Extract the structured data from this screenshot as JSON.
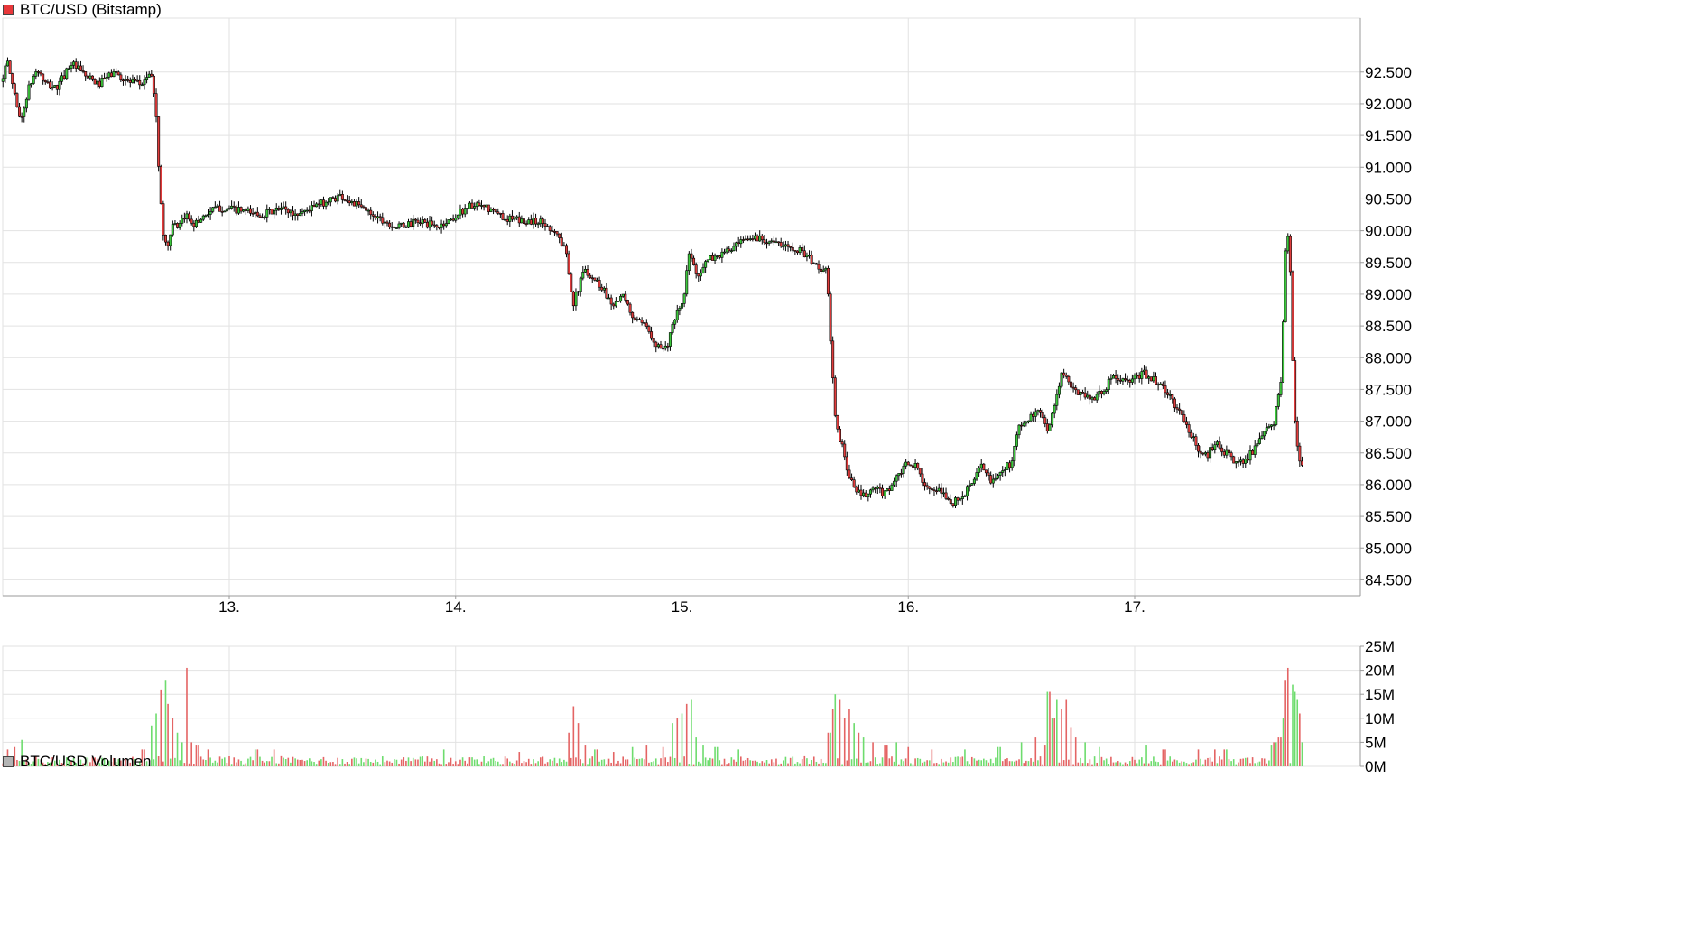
{
  "price_panel": {
    "title": "BTC/USD (Bitstamp)",
    "legend_color": "#e8373a"
  },
  "volume_panel": {
    "title": "BTC/USD Volumen",
    "legend_color": "#b4b4b4"
  },
  "colors": {
    "up": "#3cc83c",
    "down": "#e03c3c",
    "wick": "#000000",
    "grid": "#e2e2e2",
    "axis": "#9a9a9a",
    "volume_up": "#6edc6e",
    "volume_down": "#e46464"
  },
  "chart_data": [
    {
      "type": "candlestick",
      "title": "BTC/USD (Bitstamp)",
      "x_domain": [
        12.0,
        18.0
      ],
      "x_ticks": [
        {
          "value": 13,
          "label": "13."
        },
        {
          "value": 14,
          "label": "14."
        },
        {
          "value": 15,
          "label": "15."
        },
        {
          "value": 16,
          "label": "16."
        },
        {
          "value": 17,
          "label": "17."
        }
      ],
      "ylim": [
        84250,
        93350
      ],
      "y_ticks": [
        {
          "value": 84500,
          "label": "84.500"
        },
        {
          "value": 85000,
          "label": "85.000"
        },
        {
          "value": 85500,
          "label": "85.500"
        },
        {
          "value": 86000,
          "label": "86.000"
        },
        {
          "value": 86500,
          "label": "86.500"
        },
        {
          "value": 87000,
          "label": "87.000"
        },
        {
          "value": 87500,
          "label": "87.500"
        },
        {
          "value": 88000,
          "label": "88.000"
        },
        {
          "value": 88500,
          "label": "88.500"
        },
        {
          "value": 89000,
          "label": "89.000"
        },
        {
          "value": 89500,
          "label": "89.500"
        },
        {
          "value": 90000,
          "label": "90.000"
        },
        {
          "value": 90500,
          "label": "90.500"
        },
        {
          "value": 91000,
          "label": "91.000"
        },
        {
          "value": 91500,
          "label": "91.500"
        },
        {
          "value": 92000,
          "label": "92.000"
        },
        {
          "value": 92500,
          "label": "92.500"
        }
      ],
      "grid": true,
      "price_path": [
        [
          12.0,
          92350
        ],
        [
          12.03,
          92650
        ],
        [
          12.06,
          92200
        ],
        [
          12.09,
          91700
        ],
        [
          12.12,
          92200
        ],
        [
          12.16,
          92550
        ],
        [
          12.2,
          92300
        ],
        [
          12.25,
          92250
        ],
        [
          12.31,
          92650
        ],
        [
          12.37,
          92450
        ],
        [
          12.43,
          92300
        ],
        [
          12.5,
          92500
        ],
        [
          12.56,
          92350
        ],
        [
          12.62,
          92300
        ],
        [
          12.66,
          92500
        ],
        [
          12.685,
          92050
        ],
        [
          12.7,
          90800
        ],
        [
          12.72,
          89900
        ],
        [
          12.74,
          89750
        ],
        [
          12.76,
          90150
        ],
        [
          12.78,
          90000
        ],
        [
          12.82,
          90250
        ],
        [
          12.86,
          90100
        ],
        [
          12.9,
          90250
        ],
        [
          12.95,
          90350
        ],
        [
          13.0,
          90350
        ],
        [
          13.08,
          90300
        ],
        [
          13.15,
          90250
        ],
        [
          13.25,
          90350
        ],
        [
          13.3,
          90250
        ],
        [
          13.4,
          90400
        ],
        [
          13.5,
          90550
        ],
        [
          13.6,
          90350
        ],
        [
          13.65,
          90250
        ],
        [
          13.7,
          90150
        ],
        [
          13.75,
          90050
        ],
        [
          13.85,
          90150
        ],
        [
          13.93,
          90050
        ],
        [
          14.0,
          90200
        ],
        [
          14.07,
          90400
        ],
        [
          14.15,
          90350
        ],
        [
          14.23,
          90200
        ],
        [
          14.3,
          90150
        ],
        [
          14.38,
          90150
        ],
        [
          14.45,
          90000
        ],
        [
          14.5,
          89650
        ],
        [
          14.53,
          88850
        ],
        [
          14.58,
          89400
        ],
        [
          14.62,
          89250
        ],
        [
          14.66,
          89100
        ],
        [
          14.7,
          88850
        ],
        [
          14.75,
          88950
        ],
        [
          14.8,
          88600
        ],
        [
          14.86,
          88450
        ],
        [
          14.9,
          88200
        ],
        [
          14.94,
          88150
        ],
        [
          14.98,
          88600
        ],
        [
          15.02,
          88950
        ],
        [
          15.04,
          89650
        ],
        [
          15.08,
          89300
        ],
        [
          15.13,
          89550
        ],
        [
          15.2,
          89650
        ],
        [
          15.27,
          89800
        ],
        [
          15.33,
          89900
        ],
        [
          15.4,
          89850
        ],
        [
          15.45,
          89750
        ],
        [
          15.5,
          89750
        ],
        [
          15.55,
          89650
        ],
        [
          15.6,
          89450
        ],
        [
          15.65,
          89350
        ],
        [
          15.67,
          88100
        ],
        [
          15.69,
          86900
        ],
        [
          15.72,
          86600
        ],
        [
          15.75,
          86100
        ],
        [
          15.78,
          85900
        ],
        [
          15.82,
          85800
        ],
        [
          15.86,
          85950
        ],
        [
          15.9,
          85850
        ],
        [
          15.95,
          86050
        ],
        [
          16.0,
          86300
        ],
        [
          16.04,
          86300
        ],
        [
          16.08,
          86050
        ],
        [
          16.12,
          85850
        ],
        [
          16.16,
          85900
        ],
        [
          16.2,
          85700
        ],
        [
          16.25,
          85800
        ],
        [
          16.3,
          86100
        ],
        [
          16.34,
          86300
        ],
        [
          16.38,
          86000
        ],
        [
          16.42,
          86250
        ],
        [
          16.46,
          86300
        ],
        [
          16.5,
          86900
        ],
        [
          16.55,
          87050
        ],
        [
          16.6,
          87150
        ],
        [
          16.63,
          86850
        ],
        [
          16.66,
          87300
        ],
        [
          16.69,
          87800
        ],
        [
          16.73,
          87500
        ],
        [
          16.78,
          87450
        ],
        [
          16.82,
          87350
        ],
        [
          16.86,
          87450
        ],
        [
          16.92,
          87700
        ],
        [
          16.98,
          87600
        ],
        [
          17.05,
          87750
        ],
        [
          17.1,
          87650
        ],
        [
          17.15,
          87450
        ],
        [
          17.2,
          87200
        ],
        [
          17.25,
          86850
        ],
        [
          17.3,
          86500
        ],
        [
          17.33,
          86450
        ],
        [
          17.37,
          86700
        ],
        [
          17.4,
          86550
        ],
        [
          17.45,
          86350
        ],
        [
          17.5,
          86400
        ],
        [
          17.55,
          86600
        ],
        [
          17.6,
          86900
        ],
        [
          17.63,
          87000
        ],
        [
          17.64,
          87350
        ],
        [
          17.66,
          87650
        ],
        [
          17.67,
          89000
        ],
        [
          17.68,
          90000
        ],
        [
          17.695,
          89700
        ],
        [
          17.705,
          88400
        ],
        [
          17.715,
          87150
        ],
        [
          17.725,
          86700
        ],
        [
          17.74,
          86300
        ]
      ]
    },
    {
      "type": "bar",
      "title": "BTC/USD Volumen",
      "x_domain": [
        12.0,
        18.0
      ],
      "ylim": [
        0,
        25000000
      ],
      "y_ticks": [
        {
          "value": 0,
          "label": "0M"
        },
        {
          "value": 5000000,
          "label": "5M"
        },
        {
          "value": 10000000,
          "label": "10M"
        },
        {
          "value": 15000000,
          "label": "15M"
        },
        {
          "value": 20000000,
          "label": "20M"
        },
        {
          "value": 25000000,
          "label": "25M"
        }
      ],
      "baseline": 1400000,
      "spikes": [
        [
          12.02,
          3500000
        ],
        [
          12.05,
          4000000
        ],
        [
          12.08,
          5500000
        ],
        [
          12.62,
          3500000
        ],
        [
          12.66,
          8500000
        ],
        [
          12.68,
          11000000
        ],
        [
          12.7,
          16000000
        ],
        [
          12.715,
          18000000
        ],
        [
          12.73,
          13000000
        ],
        [
          12.75,
          10000000
        ],
        [
          12.77,
          7000000
        ],
        [
          12.79,
          5000000
        ],
        [
          12.81,
          20500000
        ],
        [
          12.83,
          5000000
        ],
        [
          12.86,
          4500000
        ],
        [
          12.91,
          3500000
        ],
        [
          13.12,
          3500000
        ],
        [
          13.2,
          3500000
        ],
        [
          13.95,
          3500000
        ],
        [
          14.28,
          3000000
        ],
        [
          14.5,
          7000000
        ],
        [
          14.52,
          12500000
        ],
        [
          14.54,
          9000000
        ],
        [
          14.57,
          4500000
        ],
        [
          14.62,
          3500000
        ],
        [
          14.7,
          3000000
        ],
        [
          14.78,
          4000000
        ],
        [
          14.84,
          4500000
        ],
        [
          14.92,
          4000000
        ],
        [
          14.96,
          9000000
        ],
        [
          14.98,
          10000000
        ],
        [
          15.0,
          11000000
        ],
        [
          15.02,
          13000000
        ],
        [
          15.04,
          14000000
        ],
        [
          15.06,
          6000000
        ],
        [
          15.09,
          4500000
        ],
        [
          15.15,
          4000000
        ],
        [
          15.25,
          3500000
        ],
        [
          15.65,
          7000000
        ],
        [
          15.67,
          12000000
        ],
        [
          15.68,
          15000000
        ],
        [
          15.7,
          14000000
        ],
        [
          15.72,
          10000000
        ],
        [
          15.74,
          12000000
        ],
        [
          15.76,
          9000000
        ],
        [
          15.78,
          7000000
        ],
        [
          15.8,
          6000000
        ],
        [
          15.84,
          5000000
        ],
        [
          15.9,
          4500000
        ],
        [
          15.95,
          5000000
        ],
        [
          16.0,
          4000000
        ],
        [
          16.1,
          3500000
        ],
        [
          16.25,
          3500000
        ],
        [
          16.4,
          4000000
        ],
        [
          16.5,
          5000000
        ],
        [
          16.56,
          6000000
        ],
        [
          16.6,
          4500000
        ],
        [
          16.62,
          15500000
        ],
        [
          16.64,
          10000000
        ],
        [
          16.66,
          14000000
        ],
        [
          16.68,
          12000000
        ],
        [
          16.7,
          14000000
        ],
        [
          16.72,
          8000000
        ],
        [
          16.74,
          6000000
        ],
        [
          16.78,
          5000000
        ],
        [
          16.84,
          4000000
        ],
        [
          17.05,
          4500000
        ],
        [
          17.13,
          3500000
        ],
        [
          17.28,
          3500000
        ],
        [
          17.35,
          3500000
        ],
        [
          17.4,
          3500000
        ],
        [
          17.6,
          4500000
        ],
        [
          17.62,
          5000000
        ],
        [
          17.64,
          6000000
        ],
        [
          17.66,
          10000000
        ],
        [
          17.67,
          18000000
        ],
        [
          17.68,
          20500000
        ],
        [
          17.695,
          17000000
        ],
        [
          17.705,
          15500000
        ],
        [
          17.715,
          14000000
        ],
        [
          17.725,
          11000000
        ],
        [
          17.74,
          5000000
        ]
      ]
    }
  ]
}
